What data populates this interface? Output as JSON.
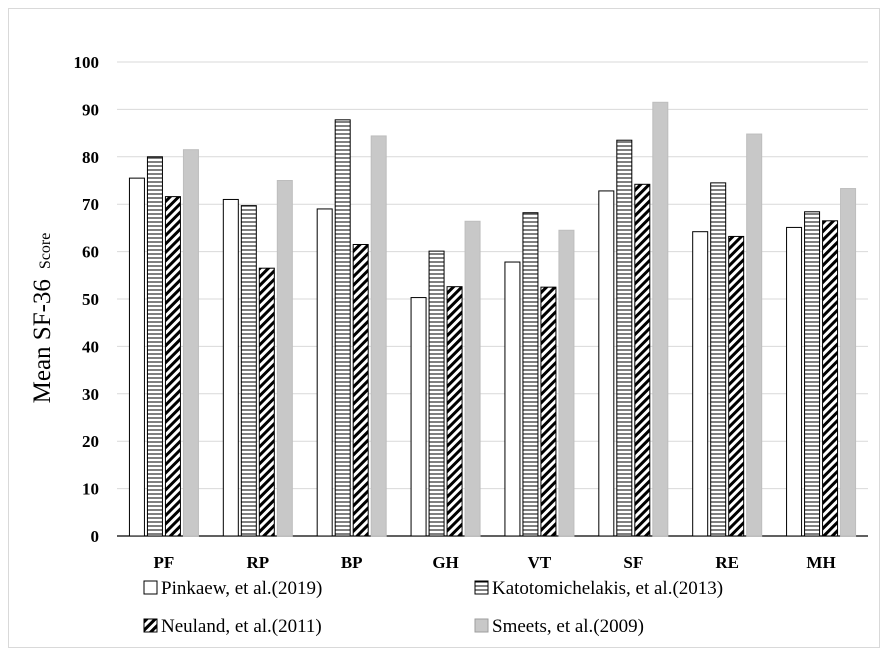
{
  "chart_data": {
    "type": "bar",
    "ylabel": "Mean SF-36",
    "ylabel_suffix": "Score",
    "ylim": [
      0,
      100
    ],
    "yticks": [
      0,
      10,
      20,
      30,
      40,
      50,
      60,
      70,
      80,
      90,
      100
    ],
    "grid": true,
    "legend_position": "bottom",
    "categories": [
      "PF",
      "RP",
      "BP",
      "GH",
      "VT",
      "SF",
      "RE",
      "MH"
    ],
    "series": [
      {
        "name": "Pinkaew, et al.(2019)",
        "pattern": "white",
        "values": [
          75.5,
          71.0,
          69.0,
          50.3,
          57.8,
          72.8,
          64.2,
          65.1
        ]
      },
      {
        "name": "Katotomichelakis, et al.(2013)",
        "pattern": "horizontal-lines",
        "values": [
          80.0,
          69.7,
          87.8,
          60.1,
          68.2,
          83.5,
          74.5,
          68.4
        ]
      },
      {
        "name": "Neuland, et al.(2011)",
        "pattern": "diagonal-hatch",
        "values": [
          71.6,
          56.5,
          61.5,
          52.6,
          52.5,
          74.2,
          63.2,
          66.5
        ]
      },
      {
        "name": "Smeets, et al.(2009)",
        "pattern": "gray",
        "values": [
          81.5,
          75.0,
          84.4,
          66.4,
          64.5,
          91.5,
          84.8,
          73.3
        ]
      }
    ],
    "colors": {
      "gray_fill": "#c8c8c8",
      "grid": "#d9d9d9",
      "axis": "#000000"
    }
  }
}
